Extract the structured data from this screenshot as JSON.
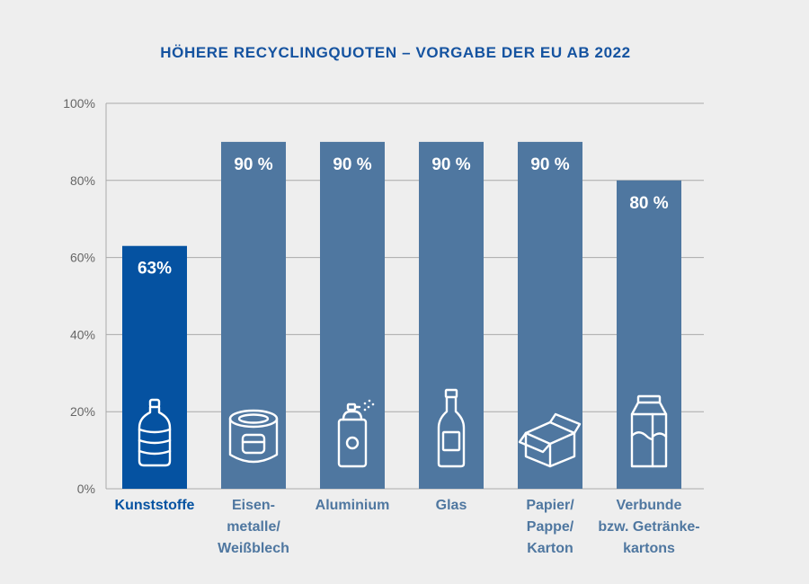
{
  "colors": {
    "background": "#eeeeee",
    "title": "#1553a0",
    "bar": "#4f77a0",
    "bar_highlight": "#0552a1",
    "category_text": "#4f77a0",
    "category_highlight_text": "#0552a1",
    "axis_text": "#666666",
    "grid": "#a9a9a9",
    "value_text": "#ffffff",
    "icon": "#ffffff"
  },
  "chart_data": {
    "type": "bar",
    "title": "HÖHERE RECYCLINGQUOTEN  – VORGABE DER EU AB 2022",
    "xlabel": "",
    "ylabel": "",
    "ylim": [
      0,
      100
    ],
    "yticks": [
      "0%",
      "20%",
      "40%",
      "60%",
      "80%",
      "100%"
    ],
    "grid": true,
    "categories": [
      [
        "Kunststoffe"
      ],
      [
        "Eisen-",
        "metalle/",
        "Weißblech"
      ],
      [
        "Aluminium"
      ],
      [
        "Glas"
      ],
      [
        "Papier/",
        "Pappe/",
        "Karton"
      ],
      [
        "Verbunde",
        "bzw. Getränke-",
        "kartons"
      ]
    ],
    "values": [
      63,
      90,
      90,
      90,
      90,
      80
    ],
    "value_labels": [
      "63%",
      "90 %",
      "90 %",
      "90 %",
      "90 %",
      "80 %"
    ],
    "highlight_index": 0,
    "icons": [
      "bottle-icon",
      "can-icon",
      "spray-can-icon",
      "glass-bottle-icon",
      "box-icon",
      "beverage-carton-icon"
    ]
  }
}
